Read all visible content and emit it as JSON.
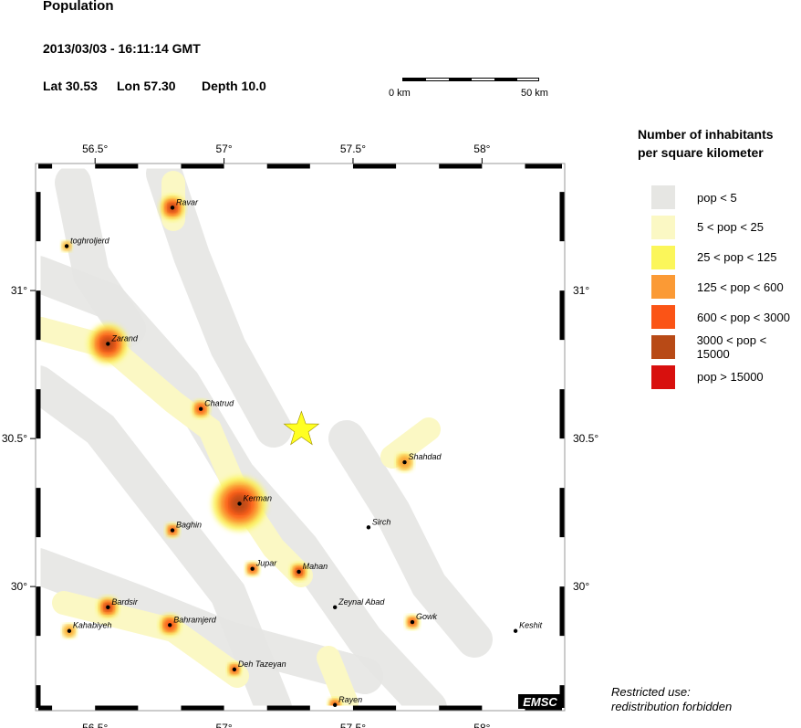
{
  "header": {
    "title": "Population",
    "datetime": "2013/03/03 - 16:11:14 GMT",
    "lat_label": "Lat 30.53",
    "lon_label": "Lon  57.30",
    "depth_label": "Depth  10.0"
  },
  "scale_bar": {
    "start_label": "0 km",
    "end_label": "50 km"
  },
  "axes": {
    "lon_ticks": [
      {
        "value": 56.5,
        "label": "56.5°"
      },
      {
        "value": 57,
        "label": "57°"
      },
      {
        "value": 57.5,
        "label": "57.5°"
      },
      {
        "value": 58,
        "label": "58°"
      }
    ],
    "lat_ticks": [
      {
        "value": 31,
        "label": "31°"
      },
      {
        "value": 30.5,
        "label": "30.5°"
      },
      {
        "value": 30,
        "label": "30°"
      }
    ],
    "lon_range": [
      56.28,
      58.31
    ],
    "lat_range": [
      29.59,
      31.42
    ]
  },
  "epicenter": {
    "lat": 30.53,
    "lon": 57.3,
    "color": "#ffff22"
  },
  "cities": [
    {
      "name": "Ravar",
      "lat": 31.28,
      "lon": 56.8
    },
    {
      "name": "toghroljerd",
      "lat": 31.15,
      "lon": 56.39
    },
    {
      "name": "Zarand",
      "lat": 30.82,
      "lon": 56.55
    },
    {
      "name": "Chatrud",
      "lat": 30.6,
      "lon": 56.91
    },
    {
      "name": "Kerman",
      "lat": 30.28,
      "lon": 57.06
    },
    {
      "name": "Baghin",
      "lat": 30.19,
      "lon": 56.8
    },
    {
      "name": "Jupar",
      "lat": 30.06,
      "lon": 57.11
    },
    {
      "name": "Mahan",
      "lat": 30.05,
      "lon": 57.29
    },
    {
      "name": "Sirch",
      "lat": 30.2,
      "lon": 57.56
    },
    {
      "name": "Shahdad",
      "lat": 30.42,
      "lon": 57.7
    },
    {
      "name": "Zeynal Abad",
      "lat": 29.93,
      "lon": 57.43
    },
    {
      "name": "Gowk",
      "lat": 29.88,
      "lon": 57.73
    },
    {
      "name": "Keshit",
      "lat": 29.85,
      "lon": 58.13
    },
    {
      "name": "Bardsir",
      "lat": 29.93,
      "lon": 56.55
    },
    {
      "name": "Kahabiyeh",
      "lat": 29.85,
      "lon": 56.4
    },
    {
      "name": "Bahramjerd",
      "lat": 29.87,
      "lon": 56.79
    },
    {
      "name": "Deh Tazeyan",
      "lat": 29.72,
      "lon": 57.04
    },
    {
      "name": "Rayen",
      "lat": 29.6,
      "lon": 57.43
    }
  ],
  "legend": {
    "title_line1": "Number of inhabitants",
    "title_line2": "per square kilometer",
    "items": [
      {
        "label": "pop < 5",
        "color": "#e6e6e3"
      },
      {
        "label": "5 < pop < 25",
        "color": "#fbf8c4"
      },
      {
        "label": "25 < pop < 125",
        "color": "#fbf65a"
      },
      {
        "label": "125 < pop < 600",
        "color": "#fb9a35"
      },
      {
        "label": "600 < pop < 3000",
        "color": "#fb5416"
      },
      {
        "label": "3000 < pop < 15000",
        "color": "#b84a16"
      },
      {
        "label": "pop > 15000",
        "color": "#d8100e"
      }
    ]
  },
  "logo": "EMSC",
  "notice": {
    "line1": "Restricted use:",
    "line2": "redistribution forbidden"
  }
}
